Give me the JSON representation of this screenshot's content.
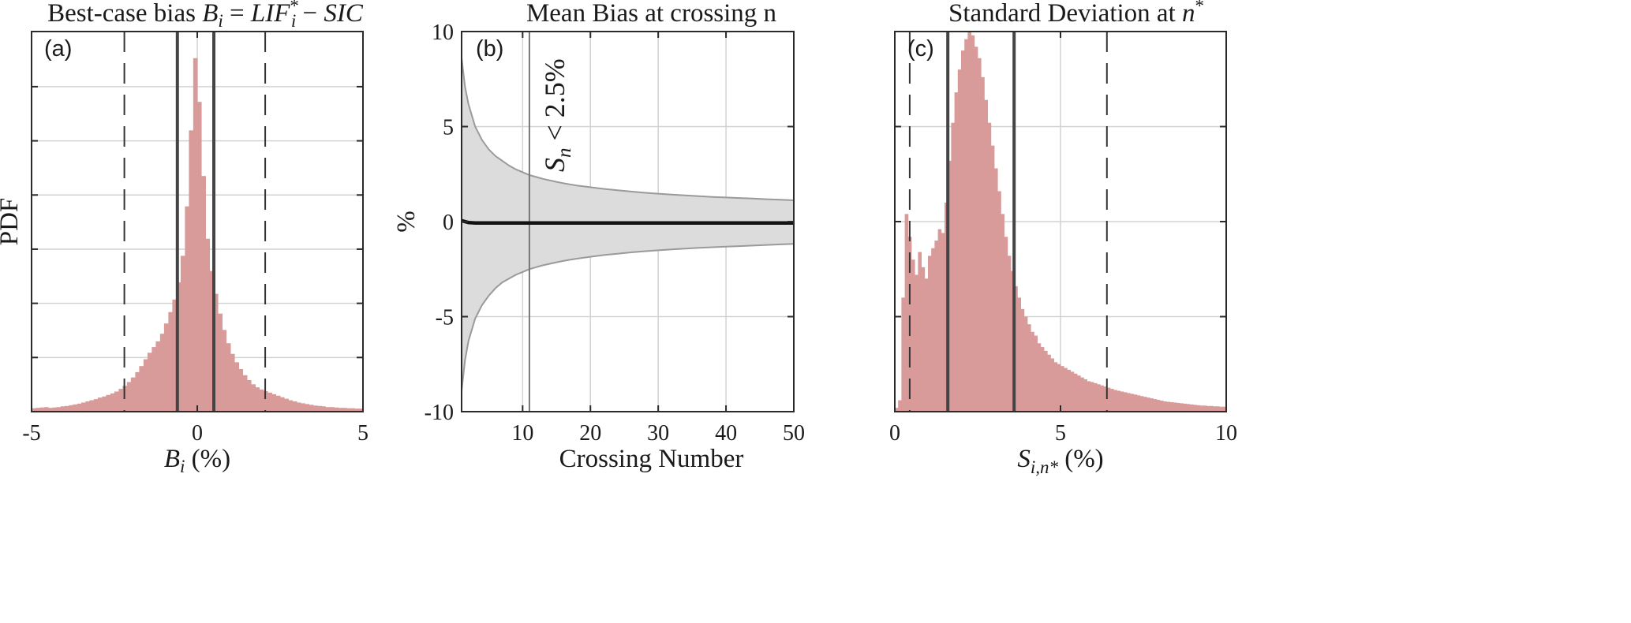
{
  "colors": {
    "hist_fill": "#d99a9a",
    "band_fill": "#dcdcdc",
    "band_edge": "#9a9a9a",
    "grid": "#d2d2d2",
    "vline_dark": "#444444",
    "mean_line": "#111111"
  },
  "chart_data": [
    {
      "type": "bar",
      "panel": "(a)",
      "title": "Best-case bias B_i = LIF_i* − SIC",
      "title_parts": {
        "lead": "Best-case bias ",
        "b": "B",
        "b_sub": "i",
        "eq": " = ",
        "lif": "LIF",
        "lif_sup": "*",
        "lif_sub": "i",
        "minus": " − ",
        "sic": "SIC"
      },
      "xlabel": "B_i (%)",
      "xlabel_parts": {
        "var": "B",
        "sub": "i",
        "unit": " (%)"
      },
      "ylabel": "PDF",
      "xlim": [
        -5,
        5
      ],
      "ylim": [
        0,
        1
      ],
      "xticks": [
        -5,
        0,
        5
      ],
      "xtick_labels": [
        "-5",
        "0",
        "5"
      ],
      "yticks": [
        0.1425,
        0.285,
        0.4275,
        0.57,
        0.7125,
        0.855,
        1.0
      ],
      "grid": true,
      "bin_width": 0.125,
      "x": [
        -4.94,
        -4.81,
        -4.69,
        -4.56,
        -4.44,
        -4.31,
        -4.19,
        -4.06,
        -3.94,
        -3.81,
        -3.69,
        -3.56,
        -3.44,
        -3.31,
        -3.19,
        -3.06,
        -2.94,
        -2.81,
        -2.69,
        -2.56,
        -2.44,
        -2.31,
        -2.19,
        -2.06,
        -1.94,
        -1.81,
        -1.69,
        -1.56,
        -1.44,
        -1.31,
        -1.19,
        -1.06,
        -0.94,
        -0.81,
        -0.69,
        -0.56,
        -0.44,
        -0.31,
        -0.19,
        -0.06,
        0.06,
        0.19,
        0.31,
        0.44,
        0.56,
        0.69,
        0.81,
        0.94,
        1.06,
        1.19,
        1.31,
        1.44,
        1.56,
        1.69,
        1.81,
        1.94,
        2.06,
        2.19,
        2.31,
        2.44,
        2.56,
        2.69,
        2.81,
        2.94,
        3.06,
        3.19,
        3.31,
        3.44,
        3.56,
        3.69,
        3.81,
        3.94,
        4.06,
        4.19,
        4.31,
        4.44,
        4.56,
        4.69,
        4.81,
        4.94
      ],
      "values": [
        0.009,
        0.01,
        0.011,
        0.012,
        0.01,
        0.011,
        0.012,
        0.014,
        0.015,
        0.017,
        0.019,
        0.021,
        0.024,
        0.027,
        0.03,
        0.033,
        0.037,
        0.04,
        0.044,
        0.048,
        0.053,
        0.06,
        0.068,
        0.078,
        0.09,
        0.104,
        0.12,
        0.138,
        0.155,
        0.17,
        0.185,
        0.205,
        0.232,
        0.262,
        0.295,
        0.34,
        0.41,
        0.54,
        0.74,
        0.93,
        0.815,
        0.62,
        0.455,
        0.37,
        0.31,
        0.258,
        0.215,
        0.18,
        0.152,
        0.13,
        0.112,
        0.096,
        0.083,
        0.072,
        0.064,
        0.058,
        0.054,
        0.05,
        0.046,
        0.042,
        0.038,
        0.034,
        0.03,
        0.027,
        0.024,
        0.022,
        0.02,
        0.018,
        0.016,
        0.015,
        0.014,
        0.012,
        0.012,
        0.011,
        0.01,
        0.01,
        0.009,
        0.009,
        0.008,
        0.008
      ],
      "vlines_solid": [
        -0.6,
        0.5
      ],
      "vlines_dashed": [
        -2.2,
        2.05
      ]
    },
    {
      "type": "area",
      "panel": "(b)",
      "title": "Mean Bias at crossing n",
      "xlabel": "Crossing Number",
      "ylabel": "%",
      "xlim": [
        1,
        50
      ],
      "ylim": [
        -10,
        10
      ],
      "xticks": [
        10,
        20,
        30,
        40,
        50
      ],
      "xtick_labels": [
        "10",
        "20",
        "30",
        "40",
        "50"
      ],
      "yticks": [
        -10,
        -5,
        0,
        5,
        10
      ],
      "ytick_labels": [
        "-10",
        "-5",
        "0",
        "5",
        "10"
      ],
      "grid": true,
      "x": [
        1,
        1.5,
        2,
        3,
        4,
        5,
        6,
        7,
        8,
        9,
        10,
        11,
        12,
        13,
        14,
        15,
        16,
        17,
        18,
        20,
        22,
        24,
        26,
        28,
        30,
        32,
        34,
        36,
        38,
        40,
        42,
        44,
        46,
        48,
        50
      ],
      "series": [
        {
          "name": "",
          "role": "band_upper",
          "values": [
            8.6,
            7.1,
            6.2,
            5.0,
            4.3,
            3.8,
            3.45,
            3.2,
            2.95,
            2.75,
            2.6,
            2.45,
            2.35,
            2.25,
            2.17,
            2.09,
            2.02,
            1.96,
            1.9,
            1.81,
            1.72,
            1.65,
            1.58,
            1.52,
            1.47,
            1.42,
            1.38,
            1.34,
            1.3,
            1.27,
            1.24,
            1.21,
            1.18,
            1.15,
            1.12
          ]
        },
        {
          "name": "",
          "role": "band_lower",
          "values": [
            -8.9,
            -7.3,
            -6.3,
            -5.1,
            -4.4,
            -3.9,
            -3.5,
            -3.2,
            -3.0,
            -2.8,
            -2.65,
            -2.5,
            -2.4,
            -2.3,
            -2.22,
            -2.14,
            -2.07,
            -2.01,
            -1.95,
            -1.85,
            -1.76,
            -1.69,
            -1.62,
            -1.56,
            -1.51,
            -1.46,
            -1.42,
            -1.38,
            -1.35,
            -1.32,
            -1.29,
            -1.26,
            -1.23,
            -1.2,
            -1.17
          ]
        },
        {
          "name": "",
          "role": "mean",
          "values": [
            0.05,
            0.0,
            -0.05,
            -0.07,
            -0.07,
            -0.07,
            -0.07,
            -0.07,
            -0.07,
            -0.07,
            -0.07,
            -0.07,
            -0.07,
            -0.07,
            -0.07,
            -0.07,
            -0.07,
            -0.07,
            -0.07,
            -0.07,
            -0.07,
            -0.07,
            -0.07,
            -0.07,
            -0.07,
            -0.07,
            -0.07,
            -0.07,
            -0.07,
            -0.07,
            -0.07,
            -0.07,
            -0.07,
            -0.07,
            -0.07
          ]
        }
      ],
      "vline": 11,
      "annotation": "S_n < 2.5%",
      "annotation_parts": {
        "var": "S",
        "sub": "n",
        "rest": " < 2.5%"
      }
    },
    {
      "type": "bar",
      "panel": "(c)",
      "title": "Standard Deviation at n*",
      "title_parts": {
        "lead": "Standard Deviation at ",
        "var": "n",
        "sup": "*"
      },
      "xlabel": "S_{i,n*} (%)",
      "xlabel_parts": {
        "var": "S",
        "sub": "i,n*",
        "unit": " (%)"
      },
      "xlim": [
        0,
        10
      ],
      "ylim": [
        0,
        1
      ],
      "xticks": [
        0,
        5,
        10
      ],
      "xtick_labels": [
        "0",
        "5",
        "10"
      ],
      "yticks": [
        0.25,
        0.5,
        0.75
      ],
      "grid": true,
      "bin_width": 0.1,
      "x": [
        0.05,
        0.15,
        0.25,
        0.35,
        0.45,
        0.55,
        0.65,
        0.75,
        0.85,
        0.95,
        1.05,
        1.15,
        1.25,
        1.35,
        1.45,
        1.55,
        1.65,
        1.75,
        1.85,
        1.95,
        2.05,
        2.15,
        2.25,
        2.35,
        2.45,
        2.55,
        2.65,
        2.75,
        2.85,
        2.95,
        3.05,
        3.15,
        3.25,
        3.35,
        3.45,
        3.55,
        3.65,
        3.75,
        3.85,
        3.95,
        4.05,
        4.15,
        4.25,
        4.35,
        4.45,
        4.55,
        4.65,
        4.75,
        4.85,
        4.95,
        5.05,
        5.15,
        5.25,
        5.35,
        5.45,
        5.55,
        5.65,
        5.75,
        5.85,
        5.95,
        6.05,
        6.15,
        6.25,
        6.35,
        6.45,
        6.55,
        6.65,
        6.75,
        6.85,
        6.95,
        7.05,
        7.15,
        7.25,
        7.35,
        7.45,
        7.55,
        7.65,
        7.75,
        7.85,
        7.95,
        8.05,
        8.15,
        8.25,
        8.35,
        8.45,
        8.55,
        8.65,
        8.75,
        8.85,
        8.95,
        9.05,
        9.15,
        9.25,
        9.35,
        9.45,
        9.55,
        9.65,
        9.75,
        9.85,
        9.95
      ],
      "values": [
        0.01,
        0.03,
        0.3,
        0.52,
        0.46,
        0.4,
        0.36,
        0.42,
        0.38,
        0.35,
        0.41,
        0.43,
        0.45,
        0.48,
        0.47,
        0.55,
        0.66,
        0.76,
        0.84,
        0.9,
        0.95,
        0.98,
        1.0,
        0.99,
        0.96,
        0.93,
        0.88,
        0.82,
        0.76,
        0.7,
        0.64,
        0.58,
        0.52,
        0.46,
        0.41,
        0.37,
        0.33,
        0.3,
        0.27,
        0.25,
        0.23,
        0.21,
        0.2,
        0.18,
        0.17,
        0.16,
        0.15,
        0.14,
        0.13,
        0.125,
        0.12,
        0.115,
        0.11,
        0.105,
        0.1,
        0.095,
        0.09,
        0.085,
        0.08,
        0.078,
        0.075,
        0.072,
        0.069,
        0.066,
        0.063,
        0.06,
        0.057,
        0.055,
        0.053,
        0.051,
        0.049,
        0.047,
        0.045,
        0.043,
        0.041,
        0.039,
        0.037,
        0.035,
        0.033,
        0.031,
        0.029,
        0.027,
        0.026,
        0.025,
        0.024,
        0.023,
        0.022,
        0.021,
        0.02,
        0.019,
        0.018,
        0.017,
        0.016,
        0.016,
        0.015,
        0.015,
        0.014,
        0.014,
        0.013,
        0.013
      ],
      "vlines_solid": [
        1.6,
        3.6
      ],
      "vlines_dashed": [
        0.45,
        6.4
      ]
    }
  ]
}
